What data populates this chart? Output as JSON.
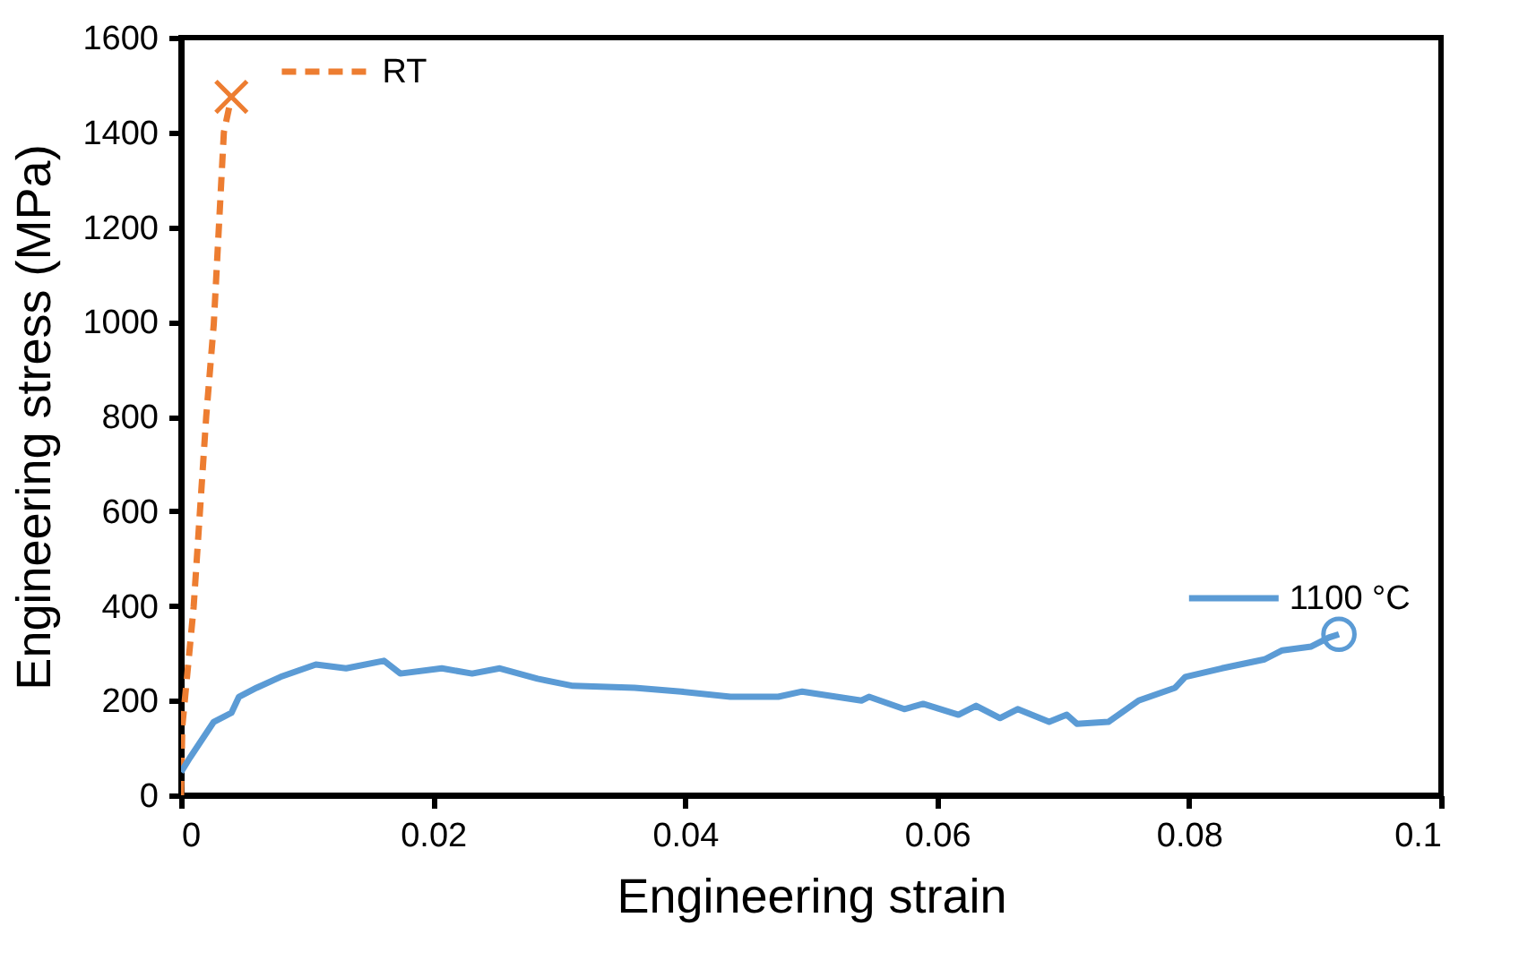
{
  "chart_data": {
    "type": "line",
    "xlabel": "Engineering strain",
    "ylabel": "Engineering stress (MPa)",
    "xlim": [
      0,
      0.1
    ],
    "ylim": [
      0,
      1600
    ],
    "xticks": [
      0,
      0.02,
      0.04,
      0.06,
      0.08,
      0.1
    ],
    "yticks": [
      0,
      200,
      400,
      600,
      800,
      1000,
      1200,
      1400,
      1600
    ],
    "grid": false,
    "legend": "top right",
    "series": [
      {
        "name": "RT",
        "color": "#ed7d31",
        "line_style": "dashed",
        "x": [
          0,
          0.0001,
          0.001,
          0.002,
          0.0026,
          0.0034,
          0.004
        ],
        "values": [
          0,
          144,
          397,
          800,
          995,
          1400,
          1475
        ]
      },
      {
        "name": "1100 °C",
        "color": "#5b9bd5",
        "line_style": "solid",
        "x": [
          0,
          0.0007,
          0.0026,
          0.004,
          0.0046,
          0.006,
          0.0079,
          0.0107,
          0.0131,
          0.0161,
          0.0174,
          0.0207,
          0.0231,
          0.0253,
          0.0283,
          0.0311,
          0.036,
          0.0397,
          0.0436,
          0.0474,
          0.0493,
          0.054,
          0.0546,
          0.0574,
          0.0589,
          0.0617,
          0.0631,
          0.065,
          0.0664,
          0.0689,
          0.0703,
          0.0711,
          0.0736,
          0.076,
          0.0789,
          0.0797,
          0.0826,
          0.086,
          0.0874,
          0.0897,
          0.0911,
          0.0919
        ],
        "values": [
          49,
          79,
          155,
          174,
          208,
          227,
          250,
          276,
          268,
          284,
          257,
          268,
          257,
          268,
          246,
          231,
          227,
          219,
          208,
          208,
          219,
          200,
          208,
          182,
          193,
          170,
          189,
          163,
          182,
          155,
          170,
          151,
          155,
          200,
          227,
          250,
          268,
          287,
          306,
          314,
          333,
          340
        ]
      },
      {
        "type": "scatter",
        "color": "#ed7d31",
        "marker": "cross",
        "x": [
          0.004
        ],
        "values": [
          1475
        ]
      },
      {
        "type": "scatter",
        "color": "#5b9bd5",
        "marker": "circle",
        "x": [
          0.0919
        ],
        "values": [
          340
        ]
      }
    ]
  }
}
